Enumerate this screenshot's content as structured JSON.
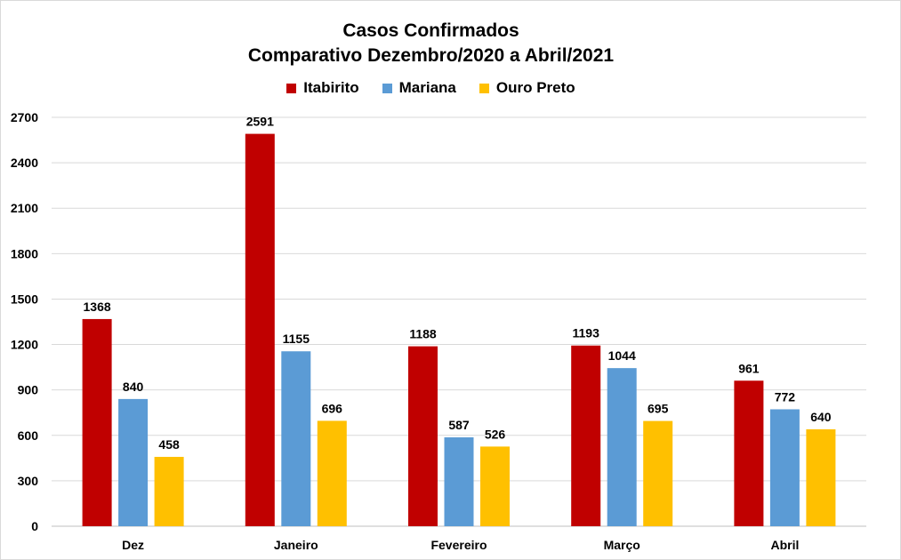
{
  "chart_data": {
    "type": "bar",
    "title": "Casos Confirmados",
    "subtitle": "Comparativo Dezembro/2020 a Abril/2021",
    "xlabel": "",
    "ylabel": "",
    "categories": [
      "Dez",
      "Janeiro",
      "Fevereiro",
      "Março",
      "Abril"
    ],
    "series": [
      {
        "name": "Itabirito",
        "color": "#c00000",
        "values": [
          1368,
          2591,
          1188,
          1193,
          961
        ]
      },
      {
        "name": "Mariana",
        "color": "#5b9bd5",
        "values": [
          840,
          1155,
          587,
          1044,
          772
        ]
      },
      {
        "name": "Ouro Preto",
        "color": "#ffc000",
        "values": [
          458,
          696,
          526,
          695,
          640
        ]
      }
    ],
    "ylim": [
      0,
      2700
    ],
    "yticks": [
      0,
      300,
      600,
      900,
      1200,
      1500,
      1800,
      2100,
      2400,
      2700
    ],
    "grid": true,
    "legend_position": "top"
  }
}
